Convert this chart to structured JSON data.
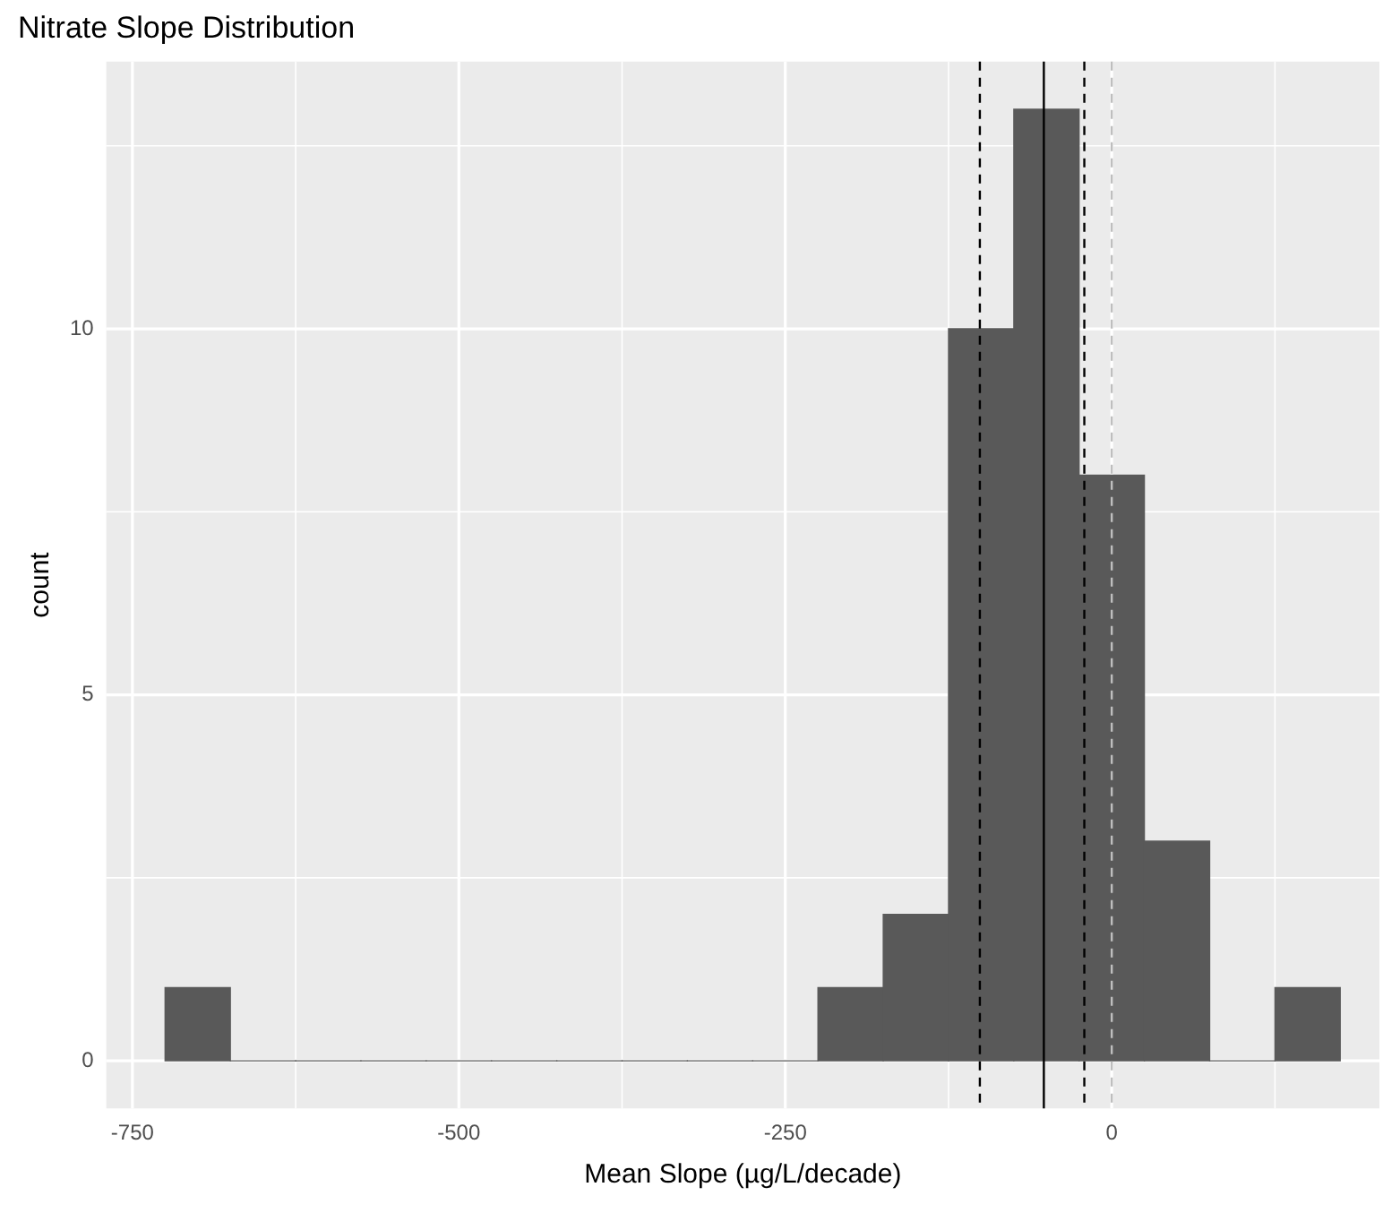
{
  "chart_data": {
    "type": "histogram",
    "title": "Nitrate Slope Distribution",
    "xlabel": "Mean Slope (µg/L/decade)",
    "ylabel": "count",
    "bins": [
      -725,
      -675,
      -625,
      -575,
      -525,
      -475,
      -425,
      -375,
      -325,
      -275,
      -225,
      -175,
      -125,
      -75,
      -25,
      25,
      75,
      125,
      175
    ],
    "values": [
      1,
      0,
      0,
      0,
      0,
      0,
      0,
      0,
      0,
      0,
      1,
      2,
      10,
      13,
      8,
      3,
      0,
      1
    ],
    "color": "#595959",
    "xlim": [
      -770,
      205
    ],
    "xticks": [
      -750,
      -500,
      -250,
      0
    ],
    "ylim": [
      -0.65,
      13.65
    ],
    "yticks": [
      0,
      5,
      10
    ],
    "grid": true,
    "legend": false,
    "ref_lines": [
      {
        "axis": "x",
        "value": -101,
        "color": "#000000",
        "line_style": "dashed"
      },
      {
        "axis": "x",
        "value": -52,
        "color": "#000000",
        "line_style": "solid"
      },
      {
        "axis": "x",
        "value": -21,
        "color": "#000000",
        "line_style": "dashed"
      },
      {
        "axis": "x",
        "value": 0,
        "color": "#bebebe",
        "line_style": "dashed"
      }
    ]
  }
}
